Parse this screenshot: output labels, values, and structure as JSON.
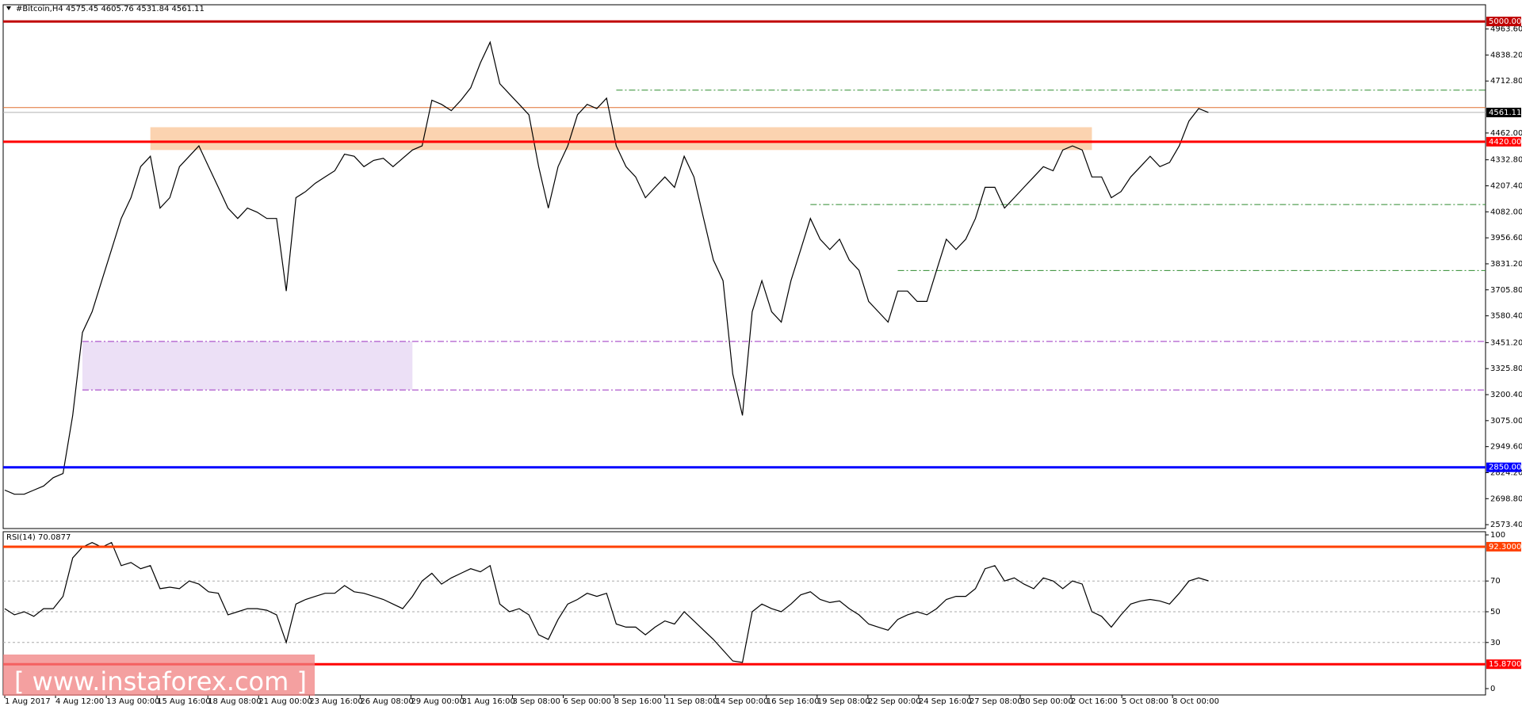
{
  "chart_data": [
    {
      "type": "line",
      "title": "#Bitcoin,H4  4575.45 4605.76 4531.84 4561.11",
      "color": "#000000",
      "values": [
        2740,
        2720,
        2720,
        2740,
        2760,
        2800,
        2820,
        3100,
        3500,
        3600,
        3750,
        3900,
        4050,
        4150,
        4300,
        4350,
        4100,
        4150,
        4300,
        4350,
        4400,
        4300,
        4200,
        4100,
        4050,
        4100,
        4080,
        4050,
        4050,
        3700,
        4150,
        4180,
        4220,
        4250,
        4280,
        4360,
        4350,
        4300,
        4330,
        4340,
        4300,
        4340,
        4380,
        4400,
        4620,
        4600,
        4570,
        4620,
        4680,
        4800,
        4900,
        4700,
        4650,
        4600,
        4550,
        4300,
        4100,
        4300,
        4400,
        4550,
        4600,
        4580,
        4630,
        4400,
        4300,
        4250,
        4150,
        4200,
        4250,
        4200,
        4350,
        4250,
        4050,
        3850,
        3750,
        3300,
        3100,
        3600,
        3750,
        3600,
        3550,
        3750,
        3900,
        4050,
        3950,
        3900,
        3950,
        3850,
        3800,
        3650,
        3600,
        3550,
        3700,
        3700,
        3650,
        3650,
        3800,
        3950,
        3900,
        3950,
        4050,
        4200,
        4200,
        4100,
        4150,
        4200,
        4250,
        4300,
        4280,
        4380,
        4400,
        4380,
        4250,
        4250,
        4150,
        4180,
        4250,
        4300,
        4350,
        4300,
        4320,
        4400,
        4520,
        4580,
        4561.11
      ],
      "ylim": [
        2554.7,
        5080.5
      ],
      "yticks": [
        {
          "value": 4963.6,
          "label": "4963.60"
        },
        {
          "value": 4838.2,
          "label": "4838.20"
        },
        {
          "value": 4712.8,
          "label": "4712.80"
        },
        {
          "value": 4462,
          "label": "4462.00"
        },
        {
          "value": 4332.8,
          "label": "4332.80"
        },
        {
          "value": 4207.4,
          "label": "4207.40"
        },
        {
          "value": 4082,
          "label": "4082.00"
        },
        {
          "value": 3956.6,
          "label": "3956.60"
        },
        {
          "value": 3831.2,
          "label": "3831.20"
        },
        {
          "value": 3705.8,
          "label": "3705.80"
        },
        {
          "value": 3580.4,
          "label": "3580.40"
        },
        {
          "value": 3451.2,
          "label": "3451.20"
        },
        {
          "value": 3325.8,
          "label": "3325.80"
        },
        {
          "value": 3200.4,
          "label": "3200.40"
        },
        {
          "value": 3075,
          "label": "3075.00"
        },
        {
          "value": 2949.6,
          "label": "2949.60"
        },
        {
          "value": 2824.2,
          "label": "2824.20"
        },
        {
          "value": 2698.8,
          "label": "2698.80"
        },
        {
          "value": 2573.4,
          "label": "2573.40"
        }
      ],
      "levels": [
        {
          "value": 5000,
          "label": "5000.00",
          "color": "#c00000"
        },
        {
          "value": 4420,
          "label": "4420.00",
          "color": "#ff0000"
        },
        {
          "value": 2850,
          "label": "2850.00",
          "color": "#0000ff"
        }
      ],
      "last_price": {
        "value": 4561.11,
        "label": "4561.11",
        "color": "#000000"
      },
      "ask_line": {
        "value": 4584.7,
        "color": "#e07030"
      },
      "dashed_levels": [
        {
          "value": 4668.9,
          "from": 63,
          "color": "#2e8b2e"
        },
        {
          "value": 4116.9,
          "from": 83,
          "color": "#2e8b2e"
        },
        {
          "value": 3798.8,
          "from": 92,
          "color": "#2e8b2e"
        },
        {
          "value": 3457,
          "from": 8,
          "color": "#9b30c0"
        },
        {
          "value": 3223,
          "from": 8,
          "color": "#9b30c0"
        }
      ],
      "zones": [
        {
          "low": 4380,
          "high": 4490,
          "from": 15,
          "to": 112,
          "color": "#fbd3b0"
        },
        {
          "low": 3223,
          "high": 3457,
          "from": 8,
          "to": 42,
          "color": "#ece0f6"
        }
      ]
    },
    {
      "type": "line",
      "title": "RSI(14) 70.0877",
      "color": "#000000",
      "values": [
        52,
        48,
        50,
        47,
        52,
        52,
        60,
        85,
        92,
        95,
        92,
        95,
        80,
        82,
        78,
        80,
        65,
        66,
        65,
        70,
        68,
        63,
        62,
        48,
        50,
        52,
        52,
        51,
        48,
        30,
        55,
        58,
        60,
        62,
        62,
        67,
        63,
        62,
        60,
        58,
        55,
        52,
        60,
        70,
        75,
        68,
        72,
        75,
        78,
        76,
        80,
        55,
        50,
        52,
        48,
        35,
        32,
        45,
        55,
        58,
        62,
        60,
        62,
        42,
        40,
        40,
        35,
        40,
        44,
        42,
        50,
        44,
        38,
        32,
        25,
        18,
        17,
        50,
        55,
        52,
        50,
        55,
        61,
        63,
        58,
        56,
        57,
        52,
        48,
        42,
        40,
        38,
        45,
        48,
        50,
        48,
        52,
        58,
        60,
        60,
        65,
        78,
        80,
        70,
        72,
        68,
        65,
        72,
        70,
        65,
        70,
        68,
        50,
        47,
        40,
        48,
        55,
        57,
        58,
        57,
        55,
        62,
        70,
        72,
        70.0877
      ],
      "ylim": [
        0,
        100
      ],
      "yticks": [
        0,
        30,
        50,
        70,
        100
      ],
      "grid_ticks": [
        30,
        50,
        70
      ],
      "levels": [
        {
          "value": 92.3,
          "label": "92.3000",
          "color": "#ff4000"
        },
        {
          "value": 15.87,
          "label": "15.8700",
          "color": "#ff0000"
        }
      ],
      "x_labels": [
        "1 Aug 2017",
        "4 Aug 12:00",
        "13 Aug 00:00",
        "15 Aug 16:00",
        "18 Aug 08:00",
        "21 Aug 00:00",
        "23 Aug 16:00",
        "26 Aug 08:00",
        "29 Aug 00:00",
        "31 Aug 16:00",
        "3 Sep 08:00",
        "6 Sep 00:00",
        "8 Sep 16:00",
        "11 Sep 08:00",
        "14 Sep 00:00",
        "16 Sep 16:00",
        "19 Sep 08:00",
        "22 Sep 00:00",
        "24 Sep 16:00",
        "27 Sep 08:00",
        "30 Sep 00:00",
        "2 Oct 16:00",
        "5 Oct 08:00",
        "8 Oct 00:00"
      ],
      "watermark": "[ www.instaforex.com ]"
    }
  ]
}
